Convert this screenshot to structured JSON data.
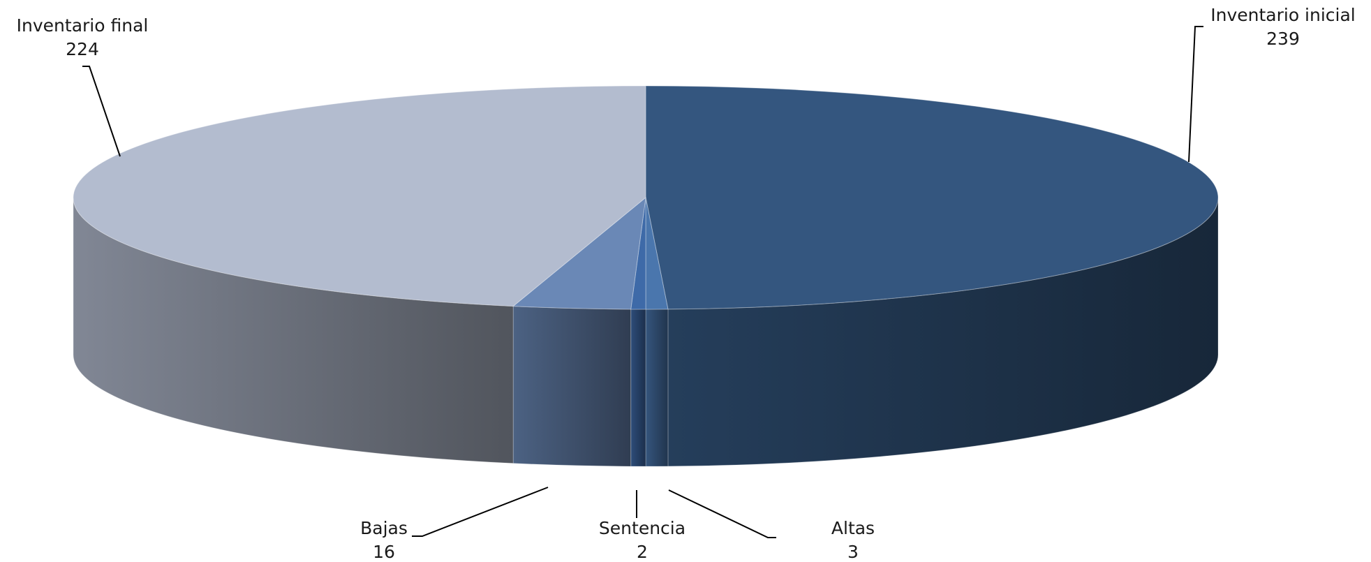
{
  "chart_data": {
    "type": "pie",
    "title": "",
    "style": "3d",
    "slices": [
      {
        "label": "Inventario inicial",
        "value": 239,
        "color": "#34567f"
      },
      {
        "label": "Altas",
        "value": 3,
        "color": "#4a76ad"
      },
      {
        "label": "Sentencia",
        "value": 2,
        "color": "#3e6aa8"
      },
      {
        "label": "Bajas",
        "value": 16,
        "color": "#6a88b6"
      },
      {
        "label": "Inventario final",
        "value": 224,
        "color": "#b3bccf"
      }
    ]
  }
}
